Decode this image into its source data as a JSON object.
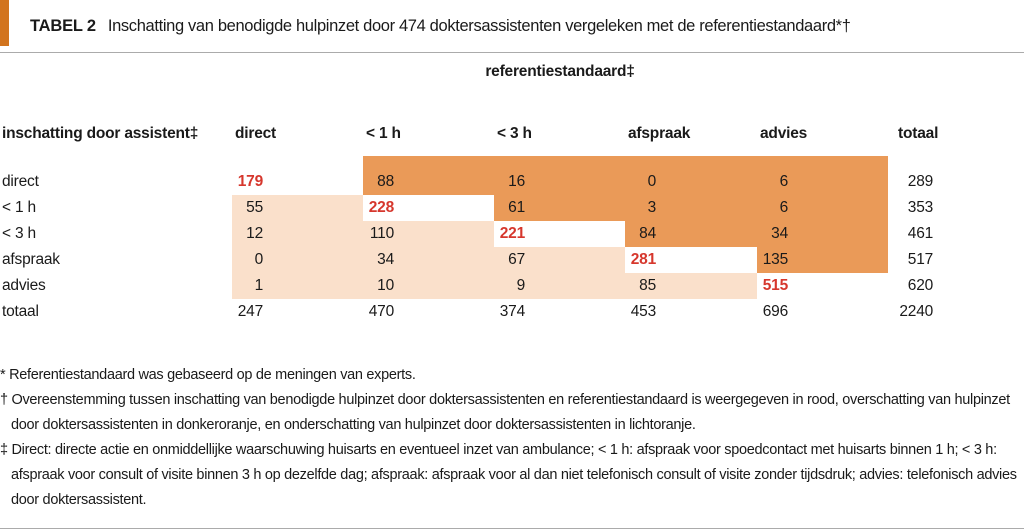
{
  "header": {
    "tag": "TABEL 2",
    "title": "Inschatting van benodigde hulpinzet door 474 doktersassistenten vergeleken met de referentiestandaard*†"
  },
  "table": {
    "group_header": "referentiestandaard‡",
    "row_header_label": "inschatting door assistent‡",
    "columns": [
      "direct",
      "< 1 h",
      "< 3 h",
      "afspraak",
      "advies",
      "totaal"
    ],
    "rows": [
      {
        "label": "direct",
        "values": [
          179,
          88,
          16,
          0,
          6,
          289
        ]
      },
      {
        "label": "< 1 h",
        "values": [
          55,
          228,
          61,
          3,
          6,
          353
        ]
      },
      {
        "label": "< 3 h",
        "values": [
          12,
          110,
          221,
          84,
          34,
          461
        ]
      },
      {
        "label": "afspraak",
        "values": [
          0,
          34,
          67,
          281,
          135,
          517
        ]
      },
      {
        "label": "advies",
        "values": [
          1,
          10,
          9,
          85,
          515,
          620
        ]
      },
      {
        "label": "totaal",
        "values": [
          247,
          470,
          374,
          453,
          696,
          2240
        ]
      }
    ]
  },
  "footnotes": [
    "* Referentiestandaard was gebaseerd op de meningen van experts.",
    "† Overeenstemming tussen inschatting van benodigde hulpinzet door doktersassistenten en referentiestandaard is weergegeven in rood, overschatting van hulpinzet door doktersassistenten in donkeroranje, en onderschatting van hulpinzet door doktersassistenten in lichtoranje.",
    "‡ Direct: directe actie en onmiddellijke waarschuwing huisarts en eventueel inzet van ambulance; < 1 h: afspraak voor spoedcontact met huisarts binnen 1 h; < 3 h: afspraak voor consult of visite binnen 3 h op dezelfde dag; afspraak: afspraak voor al dan niet telefonisch consult of visite zonder tijdsdruk; advies: telefonisch advies door doktersassistent."
  ],
  "colors": {
    "accent_orange": "#d2741e",
    "overestimation_dark_orange": "#ea9a58",
    "underestimation_light_orange": "#fae0cb",
    "agreement_red": "#d6372d"
  }
}
